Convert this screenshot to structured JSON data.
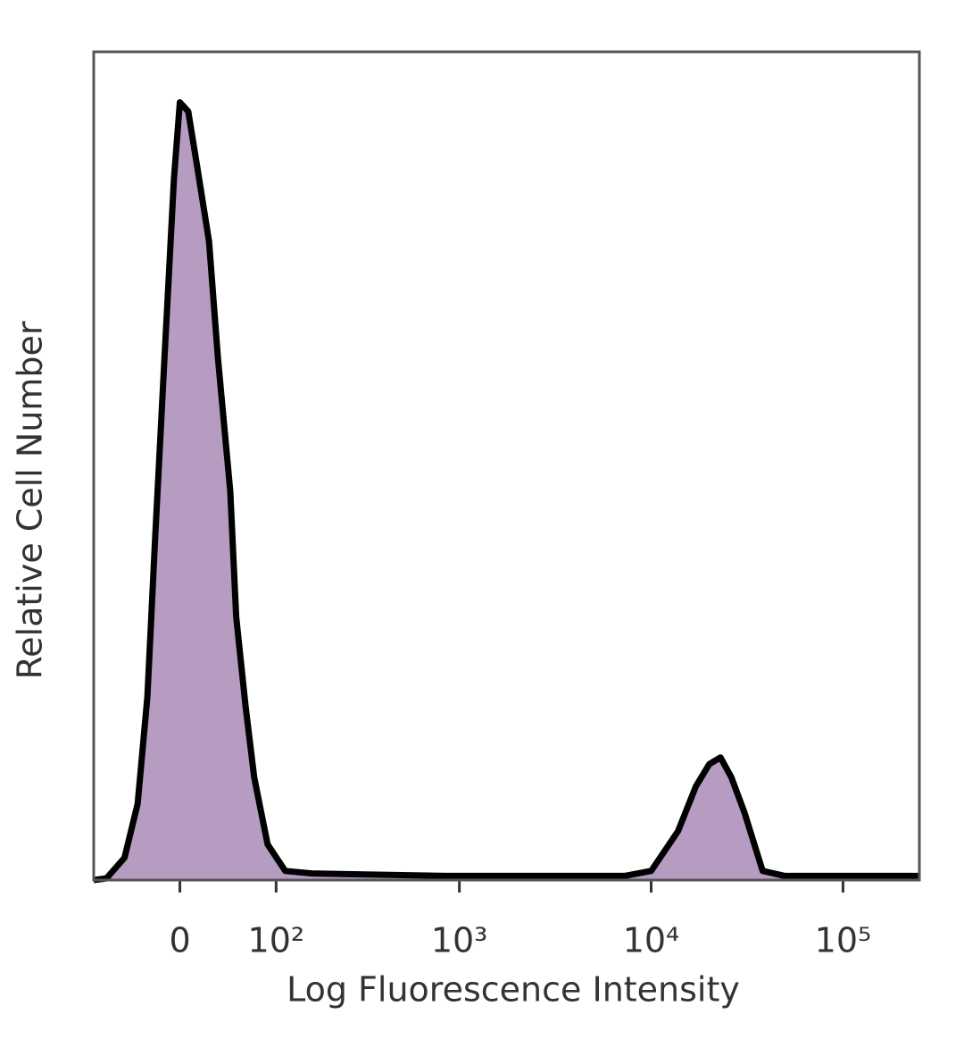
{
  "chart_data": {
    "type": "area",
    "x_label": "Log Fluorescence Intensity",
    "y_label": "Relative Cell Number",
    "xscale": "biexponential",
    "xlim": [
      -86,
      250000
    ],
    "xticks": [
      0,
      {
        "value": 100,
        "label": "10²"
      },
      {
        "value": 1000,
        "label": "10³"
      },
      {
        "value": 10000,
        "label": "10⁴"
      },
      {
        "value": 100000,
        "label": "10⁵"
      }
    ],
    "ylim": [
      0,
      100
    ],
    "color": "#b79cc2",
    "line_color": "#000000",
    "x": [
      -86,
      -70,
      -50,
      -37,
      -28,
      -21,
      -13,
      -5,
      0,
      7,
      15,
      25,
      33,
      45,
      51,
      61,
      71,
      88,
      114,
      163,
      850,
      7260,
      10000,
      13800,
      17100,
      20100,
      23000,
      26200,
      30700,
      38100,
      49800,
      250000
    ],
    "values": [
      0,
      0.2,
      2.7,
      9.2,
      22.1,
      41.5,
      63.1,
      84.7,
      93.9,
      92.8,
      85.8,
      77.1,
      63.1,
      46.9,
      31.8,
      21,
      12.4,
      4.3,
      1.1,
      0.8,
      0.5,
      0.5,
      1.1,
      5.9,
      11.3,
      14,
      14.8,
      12.4,
      8.1,
      1.1,
      0.5,
      0.5
    ]
  }
}
